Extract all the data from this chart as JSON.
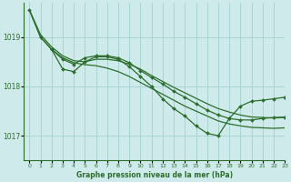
{
  "title": "Graphe pression niveau de la mer (hPa)",
  "bg_color": "#ceeaea",
  "grid_color": "#a8d4d4",
  "line_color": "#2d6e2d",
  "xlim": [
    -0.5,
    23
  ],
  "ylim": [
    1016.5,
    1019.7
  ],
  "yticks": [
    1017,
    1018,
    1019
  ],
  "xticks": [
    0,
    1,
    2,
    3,
    4,
    5,
    6,
    7,
    8,
    9,
    10,
    11,
    12,
    13,
    14,
    15,
    16,
    17,
    18,
    19,
    20,
    21,
    22,
    23
  ],
  "series_marked1": {
    "x": [
      0,
      1,
      2,
      3,
      4,
      5,
      6,
      7,
      8,
      9,
      10,
      11,
      12,
      13,
      14,
      15,
      16,
      17,
      18,
      19,
      20,
      21,
      22,
      23
    ],
    "y": [
      1019.55,
      1019.0,
      1018.75,
      1018.35,
      1018.3,
      1018.5,
      1018.6,
      1018.6,
      1018.55,
      1018.4,
      1018.2,
      1018.0,
      1017.75,
      1017.55,
      1017.4,
      1017.2,
      1017.05,
      1017.0,
      1017.35,
      1017.6,
      1017.7,
      1017.72,
      1017.75,
      1017.78
    ]
  },
  "series_marked2": {
    "x": [
      2,
      3,
      4,
      5,
      6,
      7,
      8,
      9,
      10,
      11,
      12,
      13,
      14,
      15,
      16,
      17,
      18,
      19,
      20,
      21,
      22,
      23
    ],
    "y": [
      1018.75,
      1018.55,
      1018.45,
      1018.58,
      1018.62,
      1018.62,
      1018.58,
      1018.48,
      1018.32,
      1018.18,
      1018.05,
      1017.9,
      1017.78,
      1017.65,
      1017.52,
      1017.42,
      1017.35,
      1017.32,
      1017.32,
      1017.35,
      1017.37,
      1017.38
    ]
  },
  "series_upper": {
    "x": [
      0,
      1,
      2,
      3,
      4,
      5,
      6,
      7,
      8,
      9,
      10,
      11,
      12,
      13,
      14,
      15,
      16,
      17,
      18,
      19,
      20,
      21,
      22,
      23
    ],
    "y": [
      1019.55,
      1019.05,
      1018.8,
      1018.62,
      1018.52,
      1018.5,
      1018.55,
      1018.55,
      1018.52,
      1018.45,
      1018.35,
      1018.22,
      1018.1,
      1017.98,
      1017.87,
      1017.76,
      1017.65,
      1017.55,
      1017.48,
      1017.42,
      1017.38,
      1017.37,
      1017.36,
      1017.37
    ]
  },
  "series_lower": {
    "x": [
      0,
      1,
      2,
      3,
      4,
      5,
      6,
      7,
      8,
      9,
      10,
      11,
      12,
      13,
      14,
      15,
      16,
      17,
      18,
      19,
      20,
      21,
      22,
      23
    ],
    "y": [
      1019.55,
      1019.0,
      1018.75,
      1018.58,
      1018.48,
      1018.44,
      1018.42,
      1018.37,
      1018.3,
      1018.2,
      1018.08,
      1017.96,
      1017.84,
      1017.72,
      1017.6,
      1017.5,
      1017.4,
      1017.3,
      1017.24,
      1017.2,
      1017.17,
      1017.16,
      1017.15,
      1017.16
    ]
  }
}
